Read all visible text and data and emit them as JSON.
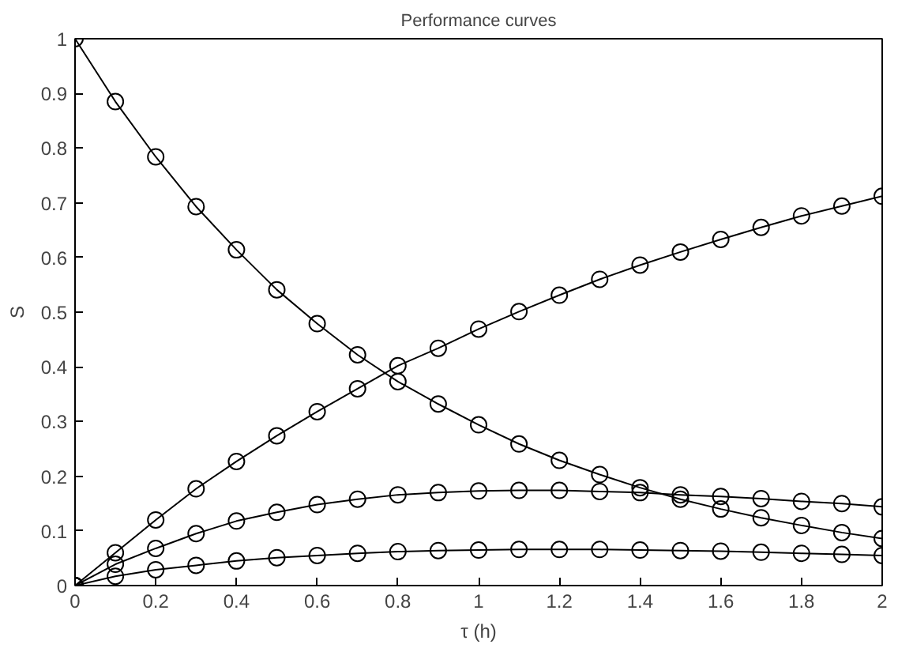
{
  "chart_data": {
    "type": "line",
    "title": "Performance curves",
    "xlabel": "τ (h)",
    "ylabel": "S",
    "x": [
      0,
      0.1,
      0.2,
      0.3,
      0.4,
      0.5,
      0.6,
      0.7,
      0.8,
      0.9,
      1,
      1.1,
      1.2,
      1.3,
      1.4,
      1.5,
      1.6,
      1.7,
      1.8,
      1.9,
      2
    ],
    "series": [
      {
        "color": "#000000",
        "values": [
          1,
          0.885,
          0.784,
          0.693,
          0.614,
          0.541,
          0.479,
          0.422,
          0.373,
          0.332,
          0.294,
          0.259,
          0.229,
          0.203,
          0.179,
          0.158,
          0.14,
          0.124,
          0.11,
          0.097,
          0.086
        ]
      },
      {
        "color": "#000000",
        "values": [
          0,
          0.06,
          0.12,
          0.177,
          0.227,
          0.274,
          0.318,
          0.36,
          0.402,
          0.434,
          0.469,
          0.501,
          0.531,
          0.56,
          0.586,
          0.61,
          0.633,
          0.655,
          0.676,
          0.694,
          0.712
        ]
      },
      {
        "color": "#000000",
        "values": [
          0,
          0.039,
          0.068,
          0.095,
          0.118,
          0.134,
          0.148,
          0.158,
          0.166,
          0.17,
          0.173,
          0.174,
          0.174,
          0.172,
          0.17,
          0.166,
          0.163,
          0.159,
          0.154,
          0.15,
          0.144
        ]
      },
      {
        "color": "#000000",
        "values": [
          0,
          0.017,
          0.029,
          0.037,
          0.045,
          0.051,
          0.055,
          0.059,
          0.062,
          0.064,
          0.065,
          0.066,
          0.066,
          0.066,
          0.065,
          0.064,
          0.063,
          0.061,
          0.059,
          0.057,
          0.055
        ]
      }
    ],
    "xlim": [
      0,
      2
    ],
    "ylim": [
      0,
      1
    ],
    "xticks": [
      0,
      0.2,
      0.4,
      0.6,
      0.8,
      1,
      1.2,
      1.4,
      1.6,
      1.8,
      2
    ],
    "yticks": [
      0,
      0.1,
      0.2,
      0.3,
      0.4,
      0.5,
      0.6,
      0.7,
      0.8,
      0.9,
      1
    ],
    "grid": false,
    "marker": "circle",
    "line_style": "solid"
  }
}
